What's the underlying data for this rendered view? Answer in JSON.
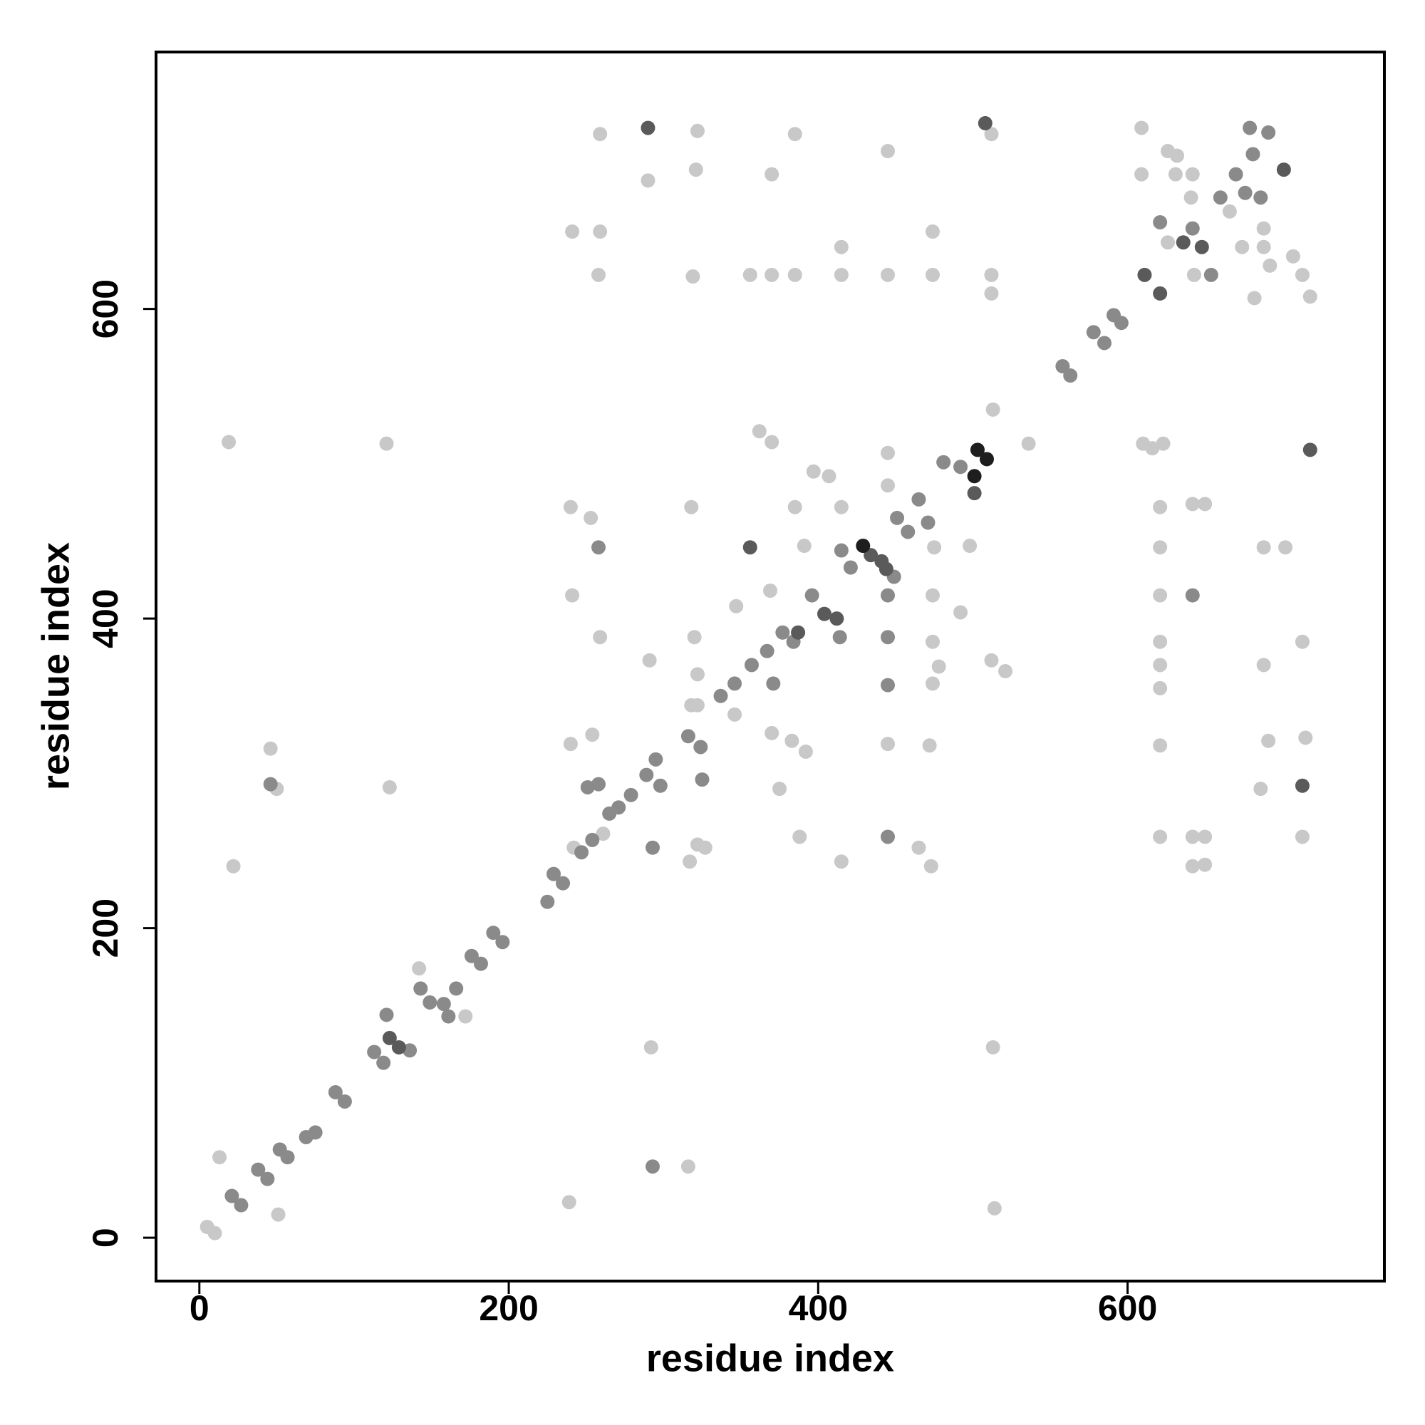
{
  "chart_data": {
    "type": "scatter",
    "x_label": "residue index",
    "y_label": "residue index",
    "xlim": [
      -28,
      766
    ],
    "ylim": [
      -28,
      766
    ],
    "xticks": [
      0,
      200,
      400,
      600
    ],
    "yticks": [
      0,
      200,
      400,
      600
    ],
    "series": [
      {
        "color": "#c8c8c8",
        "x": [
          19,
          121,
          123,
          46,
          50,
          22,
          13,
          51,
          5,
          10,
          142,
          172,
          292,
          513,
          514,
          239,
          316,
          259,
          322,
          385,
          445,
          370,
          321,
          290,
          241,
          259,
          258,
          319,
          356,
          370,
          385,
          415,
          445,
          474,
          512,
          474,
          415,
          512,
          240,
          253,
          318,
          362,
          370,
          385,
          415,
          445,
          445,
          498,
          475,
          259,
          241,
          291,
          320,
          322,
          347,
          369,
          391,
          397,
          407,
          492,
          474,
          474,
          478,
          474,
          512,
          521,
          445,
          472,
          392,
          375,
          388,
          415,
          473,
          465,
          322,
          317,
          327,
          240,
          254,
          242,
          261,
          318,
          322,
          346,
          370,
          383,
          513,
          536,
          512,
          609,
          626,
          632,
          609,
          631,
          642,
          641,
          610,
          623,
          616,
          621,
          621,
          621,
          621,
          621,
          621,
          621,
          621,
          642,
          650,
          642,
          650,
          642,
          650,
          688,
          702,
          688,
          691,
          715,
          713,
          686,
          713,
          688,
          688,
          682,
          692,
          707,
          718,
          713,
          674,
          626,
          643,
          666
        ],
        "values": [
          514,
          513,
          291,
          316,
          290,
          240,
          52,
          15,
          7,
          3,
          174,
          143,
          123,
          123,
          19,
          23,
          46,
          713,
          715,
          713,
          702,
          687,
          690,
          683,
          650,
          650,
          622,
          621,
          622,
          622,
          622,
          622,
          622,
          622,
          622,
          650,
          640,
          610,
          472,
          465,
          472,
          521,
          514,
          472,
          472,
          507,
          486,
          447,
          446,
          388,
          415,
          373,
          388,
          364,
          408,
          418,
          447,
          495,
          492,
          404,
          415,
          385,
          369,
          358,
          373,
          366,
          319,
          318,
          314,
          290,
          259,
          243,
          240,
          252,
          254,
          243,
          252,
          319,
          325,
          252,
          261,
          344,
          344,
          338,
          326,
          321,
          535,
          513,
          713,
          717,
          702,
          699,
          687,
          687,
          687,
          672,
          513,
          513,
          510,
          472,
          446,
          415,
          385,
          370,
          355,
          318,
          259,
          259,
          259,
          240,
          241,
          474,
          474,
          446,
          446,
          370,
          321,
          323,
          259,
          290,
          385,
          652,
          640,
          607,
          628,
          634,
          608,
          622,
          640,
          643,
          622,
          663
        ]
      },
      {
        "color": "#8a8a8a",
        "x": [
          21,
          27,
          38,
          44,
          52,
          57,
          69,
          75,
          88,
          94,
          113,
          119,
          136,
          121,
          143,
          149,
          161,
          158,
          166,
          176,
          182,
          190,
          196,
          225,
          229,
          235,
          247,
          254,
          265,
          271,
          279,
          289,
          295,
          298,
          316,
          324,
          325,
          337,
          346,
          357,
          367,
          371,
          377,
          384,
          396,
          414,
          415,
          421,
          445,
          449,
          451,
          458,
          465,
          471,
          481,
          492,
          558,
          563,
          578,
          585,
          591,
          596,
          621,
          642,
          654,
          660,
          670,
          676,
          686,
          679,
          691,
          681,
          293,
          46,
          258,
          258,
          293,
          445,
          445,
          445,
          251,
          642
        ],
        "values": [
          27,
          21,
          44,
          38,
          57,
          52,
          65,
          68,
          94,
          88,
          120,
          113,
          121,
          144,
          161,
          152,
          143,
          151,
          161,
          182,
          177,
          197,
          191,
          217,
          235,
          229,
          249,
          257,
          274,
          278,
          286,
          299,
          309,
          292,
          324,
          317,
          296,
          350,
          358,
          370,
          379,
          358,
          391,
          385,
          415,
          388,
          444,
          433,
          415,
          427,
          465,
          456,
          477,
          462,
          501,
          498,
          563,
          557,
          585,
          578,
          596,
          591,
          656,
          652,
          622,
          672,
          687,
          675,
          672,
          717,
          714,
          700,
          46,
          293,
          446,
          293,
          252,
          259,
          357,
          388,
          291,
          415
        ]
      },
      {
        "color": "#5a5a5a",
        "x": [
          123,
          129,
          444,
          441,
          434,
          501,
          387,
          621,
          611,
          636,
          648,
          701,
          718,
          713,
          290,
          508,
          356,
          404,
          412
        ],
        "values": [
          129,
          123,
          432,
          437,
          441,
          481,
          391,
          610,
          622,
          643,
          640,
          690,
          509,
          292,
          717,
          720,
          446,
          403,
          400
        ]
      },
      {
        "color": "#1e1e1e",
        "x": [
          503,
          509,
          501,
          429
        ],
        "values": [
          509,
          503,
          492,
          447
        ]
      }
    ]
  }
}
